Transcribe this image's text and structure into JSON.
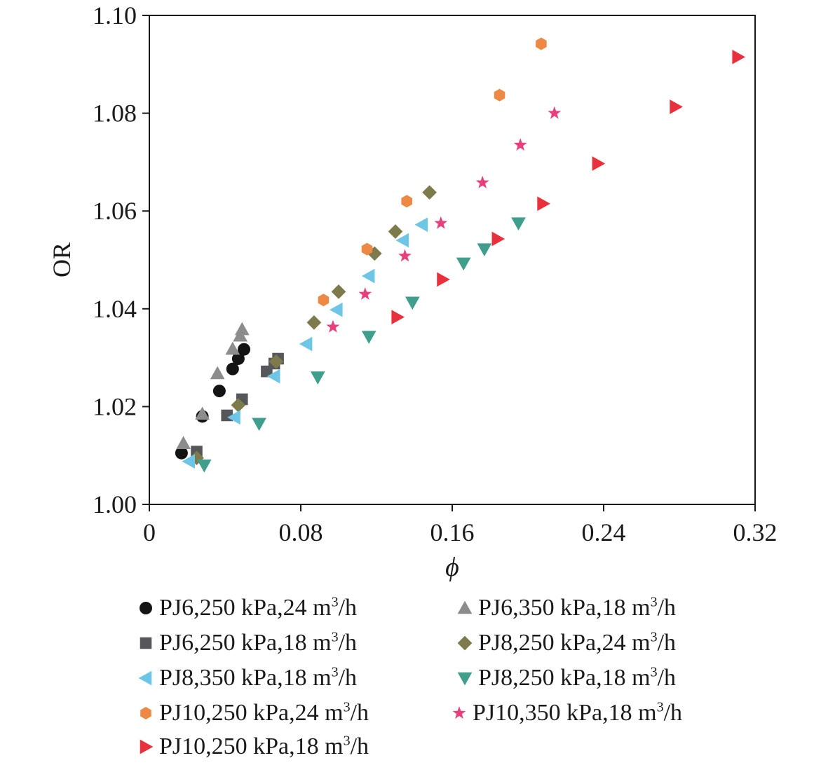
{
  "chart_data": {
    "type": "scatter",
    "xlabel": "ϕ",
    "ylabel": "OR",
    "xlim": [
      0,
      0.32
    ],
    "ylim": [
      1.0,
      1.1
    ],
    "xticks": [
      "0",
      "0.08",
      "0.16",
      "0.24",
      "0.32"
    ],
    "yticks": [
      "1.00",
      "1.02",
      "1.04",
      "1.06",
      "1.08",
      "1.10"
    ],
    "grid": false,
    "legend_placement": "bottom",
    "series": [
      {
        "name": "PJ6,250 kPa,24 m3/h",
        "marker": "circle",
        "color": "#141414",
        "x": [
          0.017,
          0.028,
          0.037,
          0.044,
          0.047,
          0.05
        ],
        "y": [
          1.0105,
          1.018,
          1.0232,
          1.0277,
          1.0298,
          1.0317
        ]
      },
      {
        "name": "PJ6,350 kPa,18 m3/h",
        "marker": "triangle-up",
        "color": "#8c8c8c",
        "x": [
          0.018,
          0.028,
          0.036,
          0.044,
          0.048,
          0.049
        ],
        "y": [
          1.0125,
          1.0185,
          1.0268,
          1.0318,
          1.0345,
          1.0358
        ]
      },
      {
        "name": "PJ6,250 kPa,18 m3/h",
        "marker": "square",
        "color": "#55575a",
        "x": [
          0.025,
          0.041,
          0.049,
          0.062,
          0.066,
          0.068
        ],
        "y": [
          1.0108,
          1.0182,
          1.0215,
          1.0272,
          1.0288,
          1.0298
        ]
      },
      {
        "name": "PJ8,250 kPa,24 m3/h",
        "marker": "diamond",
        "color": "#7d7b4b",
        "x": [
          0.025,
          0.047,
          0.067,
          0.087,
          0.1,
          0.119,
          0.13,
          0.148
        ],
        "y": [
          1.0095,
          1.0203,
          1.0292,
          1.0372,
          1.0435,
          1.0513,
          1.0558,
          1.0638
        ]
      },
      {
        "name": "PJ8,350 kPa,18 m3/h",
        "marker": "triangle-left",
        "color": "#6ec6e6",
        "x": [
          0.021,
          0.045,
          0.066,
          0.083,
          0.099,
          0.116,
          0.134,
          0.144
        ],
        "y": [
          1.0088,
          1.0178,
          1.0262,
          1.0328,
          1.0398,
          1.0467,
          1.054,
          1.0572
        ]
      },
      {
        "name": "PJ8,250 kPa,18 m3/h",
        "marker": "triangle-down",
        "color": "#3f9e8c",
        "x": [
          0.029,
          0.058,
          0.089,
          0.116,
          0.139,
          0.166,
          0.177,
          0.195
        ],
        "y": [
          1.008,
          1.0165,
          1.026,
          1.0343,
          1.0413,
          1.0493,
          1.0522,
          1.0575
        ]
      },
      {
        "name": "PJ10,250 kPa,24 m3/h",
        "marker": "hexagon",
        "color": "#ec8a45",
        "x": [
          0.092,
          0.115,
          0.136,
          0.185,
          0.207
        ],
        "y": [
          1.0418,
          1.0522,
          1.062,
          1.0837,
          1.0942
        ]
      },
      {
        "name": "PJ10,350 kPa,18 m3/h",
        "marker": "star",
        "color": "#e8407c",
        "x": [
          0.097,
          0.114,
          0.135,
          0.154,
          0.176,
          0.196,
          0.214
        ],
        "y": [
          1.0363,
          1.043,
          1.0508,
          1.0575,
          1.0658,
          1.0735,
          1.08
        ]
      },
      {
        "name": "PJ10,250 kPa,18 m3/h",
        "marker": "triangle-right",
        "color": "#e8313d",
        "x": [
          0.131,
          0.155,
          0.184,
          0.208,
          0.237,
          0.278,
          0.311
        ],
        "y": [
          1.0383,
          1.046,
          1.0543,
          1.0615,
          1.0697,
          1.0813,
          1.0915
        ]
      }
    ]
  },
  "legend": {
    "items": [
      {
        "prefix": "PJ6,250 kPa,24 m",
        "sup": "3",
        "suffix": "/h"
      },
      {
        "prefix": "PJ6,350 kPa,18 m",
        "sup": "3",
        "suffix": "/h"
      },
      {
        "prefix": "PJ6,250 kPa,18 m",
        "sup": "3",
        "suffix": "/h"
      },
      {
        "prefix": "PJ8,250 kPa,24 m",
        "sup": "3",
        "suffix": "/h"
      },
      {
        "prefix": "PJ8,350 kPa,18 m",
        "sup": "3",
        "suffix": "/h"
      },
      {
        "prefix": "PJ8,250 kPa,18 m",
        "sup": "3",
        "suffix": "/h"
      },
      {
        "prefix": "PJ10,250 kPa,24 m",
        "sup": "3",
        "suffix": "/h"
      },
      {
        "prefix": "PJ10,350 kPa,18 m",
        "sup": "3",
        "suffix": "/h"
      },
      {
        "prefix": "PJ10,250 kPa,18 m",
        "sup": "3",
        "suffix": "/h"
      }
    ]
  }
}
